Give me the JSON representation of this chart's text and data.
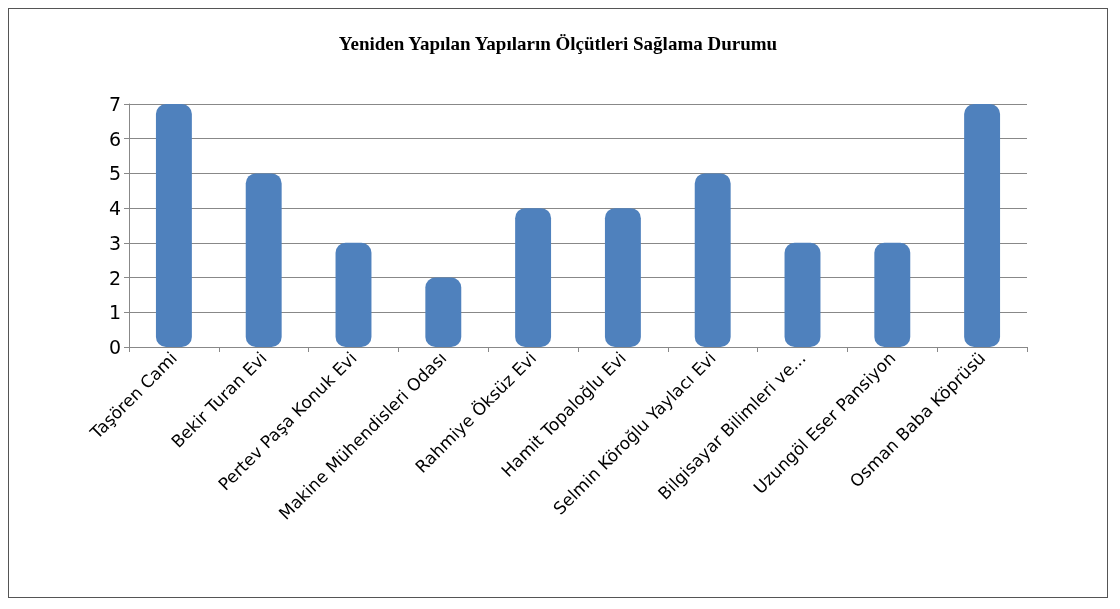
{
  "chart_data": {
    "type": "bar",
    "title": "Yeniden Yapılan Yapıların Ölçütleri Sağlama Durumu",
    "categories": [
      "Taşören Cami",
      "Bekir Turan Evi",
      "Pertev Paşa Konuk Evi",
      "Makine Mühendisleri Odası",
      "Rahmiye Öksüz Evi",
      "Hamit Topaloğlu Evi",
      "Selmin Köroğlu Yaylacı Evi",
      "Bilgisayar Bilimleri ve...",
      "Uzungöl Eser Pansiyon",
      "Osman Baba Köprüsü"
    ],
    "values": [
      7,
      5,
      3,
      2,
      4,
      4,
      5,
      3,
      3,
      7
    ],
    "color": "#4f81bd",
    "ylim": [
      0,
      7
    ],
    "yticks": [
      0,
      1,
      2,
      3,
      4,
      5,
      6,
      7
    ],
    "grid": "y"
  }
}
